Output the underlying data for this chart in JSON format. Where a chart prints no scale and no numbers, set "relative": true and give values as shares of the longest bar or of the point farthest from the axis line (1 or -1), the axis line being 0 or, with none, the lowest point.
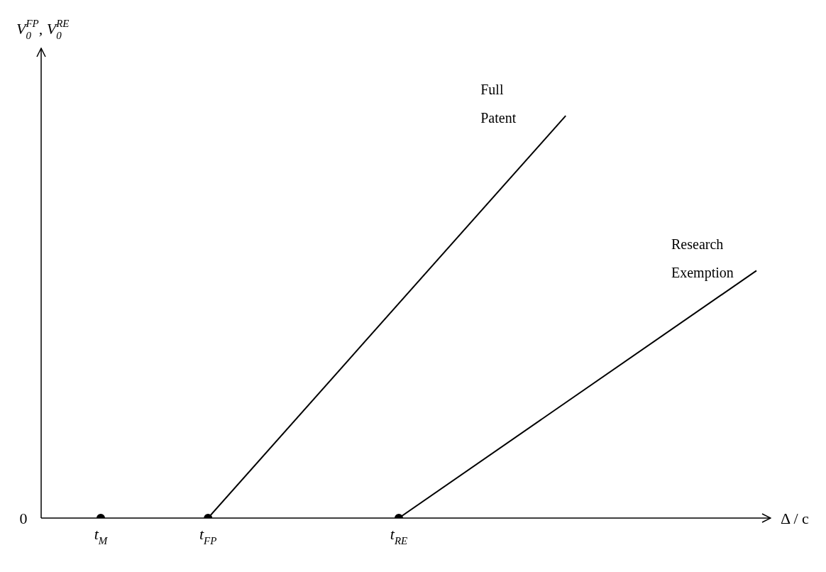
{
  "chart_data": {
    "type": "line",
    "relative": true,
    "ylabel": "V$_{0}$$^{FP}$, V$_{0}$$^{RE}$",
    "xlabel": "Δ / c",
    "categories": [
      null,
      null,
      null,
      null,
      null,
      "t$_{M}$",
      null,
      null,
      null,
      null,
      null,
      null,
      null,
      null,
      "t$_{FP}$",
      null,
      null,
      null,
      null,
      null,
      null,
      null,
      null,
      null,
      null,
      null,
      null,
      null,
      null,
      null,
      "t$_{RE}$",
      null,
      null,
      null,
      null,
      null,
      null,
      null,
      null,
      null,
      null,
      null,
      null,
      null,
      null,
      null,
      null,
      null,
      null,
      null,
      null,
      null,
      null,
      null,
      null,
      null,
      null,
      null,
      null,
      null,
      null
    ],
    "grid": false,
    "legend": false,
    "annotations": [
      "0"
    ],
    "series": [
      {
        "name": "Full Patent",
        "color": "#000000",
        "marker": "none",
        "values": [
          null,
          null,
          null,
          null,
          null,
          null,
          null,
          null,
          null,
          null,
          null,
          null,
          null,
          null,
          0,
          null,
          null,
          null,
          null,
          null,
          null,
          null,
          null,
          null,
          null,
          null,
          null,
          null,
          null,
          null,
          null,
          null,
          null,
          null,
          null,
          null,
          null,
          null,
          null,
          null,
          null,
          null,
          null,
          null,
          1,
          null,
          null,
          null,
          null,
          null,
          null,
          null,
          null,
          null,
          null,
          null,
          null,
          null,
          null,
          null,
          null
        ]
      },
      {
        "name": "Research Exemption",
        "color": "#000000",
        "marker": "none",
        "values": [
          null,
          null,
          null,
          null,
          null,
          null,
          null,
          null,
          null,
          null,
          null,
          null,
          null,
          null,
          null,
          null,
          null,
          null,
          null,
          null,
          null,
          null,
          null,
          null,
          null,
          null,
          null,
          null,
          null,
          null,
          0,
          null,
          null,
          null,
          null,
          null,
          null,
          null,
          null,
          null,
          null,
          null,
          null,
          null,
          null,
          null,
          null,
          null,
          null,
          null,
          null,
          null,
          null,
          null,
          null,
          null,
          null,
          null,
          null,
          null,
          0.615
        ]
      },
      {
        "type": "scatter",
        "color": "#000000",
        "marker": "circle",
        "values": [
          null,
          null,
          null,
          null,
          null,
          0,
          null,
          null,
          null,
          null,
          null,
          null,
          null,
          null,
          0,
          null,
          null,
          null,
          null,
          null,
          null,
          null,
          null,
          null,
          null,
          null,
          null,
          null,
          null,
          null,
          0,
          null,
          null,
          null,
          null,
          null,
          null,
          null,
          null,
          null,
          null,
          null,
          null,
          null,
          null,
          null,
          null,
          null,
          null,
          null,
          null,
          null,
          null,
          null,
          null,
          null,
          null,
          null,
          null,
          null,
          null
        ]
      }
    ]
  }
}
